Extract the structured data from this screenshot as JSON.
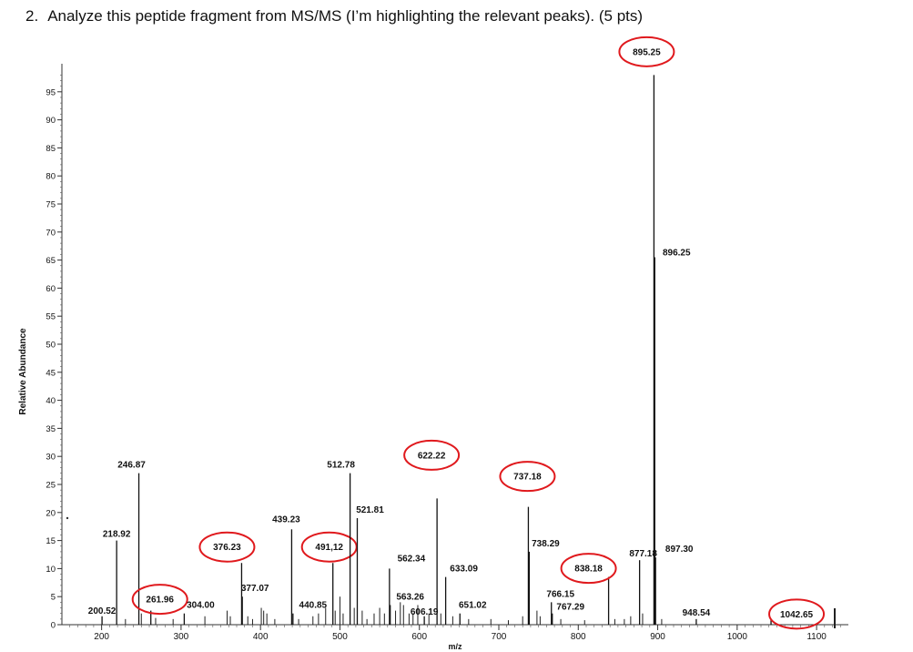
{
  "question": {
    "number": "2.",
    "text": "Analyze this peptide fragment from MS/MS (I’m highlighting the relevant peaks). (5 pts)"
  },
  "chart_data": {
    "type": "bar",
    "title": "",
    "xlabel": "m/z",
    "ylabel": "Relative Abundance",
    "xlim": [
      150,
      1140
    ],
    "ylim": [
      0,
      100
    ],
    "xticks": [
      "200",
      "300",
      "400",
      "500",
      "600",
      "700",
      "800",
      "900",
      "1000",
      "1100"
    ],
    "yticks": [
      "0",
      "5",
      "10",
      "15",
      "20",
      "25",
      "30",
      "35",
      "40",
      "45",
      "50",
      "55",
      "60",
      "65",
      "70",
      "75",
      "80",
      "85",
      "90",
      "95"
    ],
    "highlight_color": "#e0191d",
    "peaks": [
      {
        "mz": 200.52,
        "intensity": 1.5,
        "label": "200.52",
        "highlighted": false
      },
      {
        "mz": 218.92,
        "intensity": 15.0,
        "label": "218.92",
        "highlighted": false
      },
      {
        "mz": 246.87,
        "intensity": 27.0,
        "label": "246.87",
        "highlighted": false
      },
      {
        "mz": 261.96,
        "intensity": 2.5,
        "label": "261.96",
        "highlighted": true
      },
      {
        "mz": 304.0,
        "intensity": 2.0,
        "label": "304.00",
        "highlighted": false
      },
      {
        "mz": 376.23,
        "intensity": 11.0,
        "label": "376.23",
        "highlighted": true
      },
      {
        "mz": 377.07,
        "intensity": 5.0,
        "label": "377.07",
        "highlighted": false
      },
      {
        "mz": 439.23,
        "intensity": 17.0,
        "label": "439.23",
        "highlighted": false
      },
      {
        "mz": 440.85,
        "intensity": 2.0,
        "label": "440.85",
        "highlighted": false
      },
      {
        "mz": 491.12,
        "intensity": 11.0,
        "label": "491,12",
        "highlighted": true
      },
      {
        "mz": 512.78,
        "intensity": 27.0,
        "label": "512.78",
        "highlighted": false
      },
      {
        "mz": 521.81,
        "intensity": 19.0,
        "label": "521.81",
        "highlighted": false
      },
      {
        "mz": 562.34,
        "intensity": 10.0,
        "label": "562.34",
        "highlighted": false
      },
      {
        "mz": 563.26,
        "intensity": 3.5,
        "label": "563.26",
        "highlighted": false
      },
      {
        "mz": 606.19,
        "intensity": 1.5,
        "label": "606.19",
        "highlighted": false
      },
      {
        "mz": 622.22,
        "intensity": 22.5,
        "label": "622.22",
        "highlighted": true
      },
      {
        "mz": 633.09,
        "intensity": 8.5,
        "label": "633.09",
        "highlighted": false
      },
      {
        "mz": 651.02,
        "intensity": 2.0,
        "label": "651.02",
        "highlighted": false
      },
      {
        "mz": 737.18,
        "intensity": 21.0,
        "label": "737.18",
        "highlighted": true
      },
      {
        "mz": 738.29,
        "intensity": 13.0,
        "label": "738.29",
        "highlighted": false
      },
      {
        "mz": 766.15,
        "intensity": 4.0,
        "label": "766.15",
        "highlighted": false
      },
      {
        "mz": 767.29,
        "intensity": 2.0,
        "label": "767.29",
        "highlighted": false
      },
      {
        "mz": 838.18,
        "intensity": 8.5,
        "label": "838.18",
        "highlighted": true
      },
      {
        "mz": 877.18,
        "intensity": 11.5,
        "label": "877.18",
        "highlighted": false
      },
      {
        "mz": 895.25,
        "intensity": 98.0,
        "label": "895.25",
        "highlighted": true
      },
      {
        "mz": 896.25,
        "intensity": 65.5,
        "label": "896.25",
        "highlighted": false
      },
      {
        "mz": 897.3,
        "intensity": 12.0,
        "label": "897.30",
        "highlighted": false
      },
      {
        "mz": 948.54,
        "intensity": 1.0,
        "label": "948.54",
        "highlighted": false
      },
      {
        "mz": 1042.65,
        "intensity": 1.0,
        "label": "1042.65",
        "highlighted": true
      }
    ],
    "minor_peaks": [
      {
        "mz": 230,
        "intensity": 1.0
      },
      {
        "mz": 250,
        "intensity": 2.0
      },
      {
        "mz": 268,
        "intensity": 1.2
      },
      {
        "mz": 290,
        "intensity": 1.0
      },
      {
        "mz": 330,
        "intensity": 1.5
      },
      {
        "mz": 358,
        "intensity": 2.5
      },
      {
        "mz": 362,
        "intensity": 1.5
      },
      {
        "mz": 384,
        "intensity": 1.5
      },
      {
        "mz": 390,
        "intensity": 1.0
      },
      {
        "mz": 401,
        "intensity": 3.0
      },
      {
        "mz": 404,
        "intensity": 2.5
      },
      {
        "mz": 408,
        "intensity": 2.0
      },
      {
        "mz": 418,
        "intensity": 1.0
      },
      {
        "mz": 448,
        "intensity": 1.0
      },
      {
        "mz": 466,
        "intensity": 1.5
      },
      {
        "mz": 473,
        "intensity": 2.0
      },
      {
        "mz": 482,
        "intensity": 3.0
      },
      {
        "mz": 494,
        "intensity": 2.5
      },
      {
        "mz": 500,
        "intensity": 5.0
      },
      {
        "mz": 504,
        "intensity": 2.0
      },
      {
        "mz": 518,
        "intensity": 3.0
      },
      {
        "mz": 528,
        "intensity": 2.5
      },
      {
        "mz": 534,
        "intensity": 1.0
      },
      {
        "mz": 543,
        "intensity": 2.0
      },
      {
        "mz": 550,
        "intensity": 3.0
      },
      {
        "mz": 556,
        "intensity": 2.0
      },
      {
        "mz": 570,
        "intensity": 2.5
      },
      {
        "mz": 576,
        "intensity": 4.0
      },
      {
        "mz": 580,
        "intensity": 3.5
      },
      {
        "mz": 587,
        "intensity": 2.0
      },
      {
        "mz": 592,
        "intensity": 2.0
      },
      {
        "mz": 598,
        "intensity": 3.5
      },
      {
        "mz": 612,
        "intensity": 2.0
      },
      {
        "mz": 627,
        "intensity": 2.0
      },
      {
        "mz": 642,
        "intensity": 1.5
      },
      {
        "mz": 662,
        "intensity": 1.0
      },
      {
        "mz": 690,
        "intensity": 1.0
      },
      {
        "mz": 712,
        "intensity": 0.8
      },
      {
        "mz": 730,
        "intensity": 1.5
      },
      {
        "mz": 748,
        "intensity": 2.5
      },
      {
        "mz": 752,
        "intensity": 1.5
      },
      {
        "mz": 778,
        "intensity": 1.0
      },
      {
        "mz": 808,
        "intensity": 0.8
      },
      {
        "mz": 846,
        "intensity": 1.0
      },
      {
        "mz": 858,
        "intensity": 1.0
      },
      {
        "mz": 866,
        "intensity": 1.5
      },
      {
        "mz": 881,
        "intensity": 2.0
      },
      {
        "mz": 905,
        "intensity": 1.0
      }
    ]
  }
}
